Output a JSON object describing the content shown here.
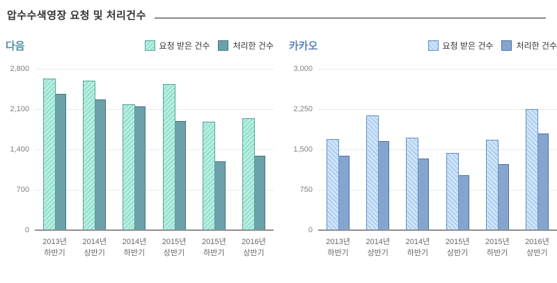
{
  "page": {
    "title": "압수수색영장 요청 및 처리건수"
  },
  "chart_data": [
    {
      "type": "bar",
      "title": "다음",
      "legend": [
        "요청 받은 건수",
        "처리한 건수"
      ],
      "legend_position": "top-right",
      "grid": true,
      "categories": [
        "2013년 하반기",
        "2014년 상반기",
        "2014년 하반기",
        "2015년 상반기",
        "2015년 하반기",
        "2016년 상반기"
      ],
      "series": [
        {
          "name": "요청 받은 건수",
          "style": "hatched",
          "values": [
            2630,
            2600,
            2190,
            2530,
            1880,
            1940
          ]
        },
        {
          "name": "처리한 건수",
          "style": "solid",
          "values": [
            2360,
            2270,
            2150,
            1900,
            1200,
            1290
          ]
        }
      ],
      "ylim": [
        0,
        2800
      ],
      "yticks": [
        "2,800",
        "2,100",
        "1,400",
        "700",
        "0"
      ],
      "colors": {
        "title": "#4e8d9e",
        "hatch_fill": "#b9eee1",
        "hatch_stripe": "#8adcc8",
        "hatch_border": "#54a296",
        "solid_fill": "#6ba1aa",
        "solid_border": "#47727b",
        "hatch_direction": "135deg"
      }
    },
    {
      "type": "bar",
      "title": "카카오",
      "legend": [
        "요청 받은 건수",
        "처리한 건수"
      ],
      "legend_position": "top-right",
      "grid": true,
      "categories": [
        "2013년 하반기",
        "2014년 상반기",
        "2014년 하반기",
        "2015년 상반기",
        "2015년 하반기",
        "2016년 상반기"
      ],
      "series": [
        {
          "name": "요청 받은 건수",
          "style": "hatched",
          "values": [
            1690,
            2130,
            1720,
            1430,
            1680,
            2250
          ]
        },
        {
          "name": "처리한 건수",
          "style": "solid",
          "values": [
            1390,
            1650,
            1330,
            1020,
            1230,
            1800
          ]
        }
      ],
      "ylim": [
        0,
        3000
      ],
      "yticks": [
        "3,000",
        "2,250",
        "1,500",
        "750",
        "0"
      ],
      "colors": {
        "title": "#5e85b8",
        "hatch_fill": "#cfe4f8",
        "hatch_stripe": "#a9cbee",
        "hatch_border": "#5c8dc6",
        "solid_fill": "#85a5cf",
        "solid_border": "#4a70a4",
        "hatch_direction": "45deg"
      }
    }
  ]
}
